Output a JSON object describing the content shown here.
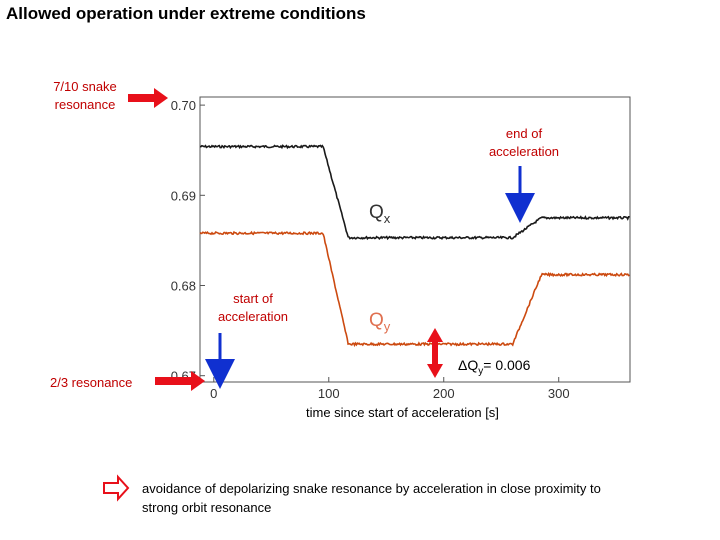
{
  "page": {
    "title": "Allowed operation under extreme conditions",
    "label_snake": "7/10 snake\nresonance",
    "label_end": "end of\nacceleration",
    "label_start": "start of\nacceleration",
    "label_23": "2/3 resonance",
    "dq_prefix": "ΔQ",
    "dq_sub": "y",
    "dq_value": "= 0.006",
    "footer": "avoidance of depolarizing snake resonance by acceleration in close proximity to strong orbit resonance"
  },
  "colors": {
    "qx": "#1a1a1a",
    "qy": "#cc4a10",
    "arrow_red": "#e8101a",
    "arrow_blue": "#1030d0",
    "text_red": "#c00000"
  },
  "chart_data": {
    "type": "line",
    "title": "",
    "xlabel": "time since start of acceleration [s]",
    "ylabel": "",
    "xlim": [
      -12,
      362
    ],
    "ylim": [
      0.6693,
      0.7009
    ],
    "x_ticks": [
      0,
      100,
      200,
      300
    ],
    "x_tick_labels": [
      "0",
      "100",
      "200",
      "300"
    ],
    "y_ticks": [
      0.67,
      0.68,
      0.69,
      0.7
    ],
    "y_tick_labels": [
      "0.67",
      "0.68",
      "0.69",
      "0.70"
    ],
    "series": [
      {
        "name": "Qx",
        "label": "Qx",
        "label_x": 135,
        "label_y": 0.6875,
        "x": [
          -12,
          95,
          117,
          260,
          285,
          362
        ],
        "y": [
          0.6954,
          0.6954,
          0.6853,
          0.6853,
          0.6875,
          0.6875
        ]
      },
      {
        "name": "Qy",
        "label": "Qy",
        "label_x": 135,
        "label_y": 0.6755,
        "x": [
          -12,
          95,
          117,
          260,
          285,
          362
        ],
        "y": [
          0.6858,
          0.6858,
          0.6735,
          0.6735,
          0.6812,
          0.6812
        ]
      }
    ]
  }
}
